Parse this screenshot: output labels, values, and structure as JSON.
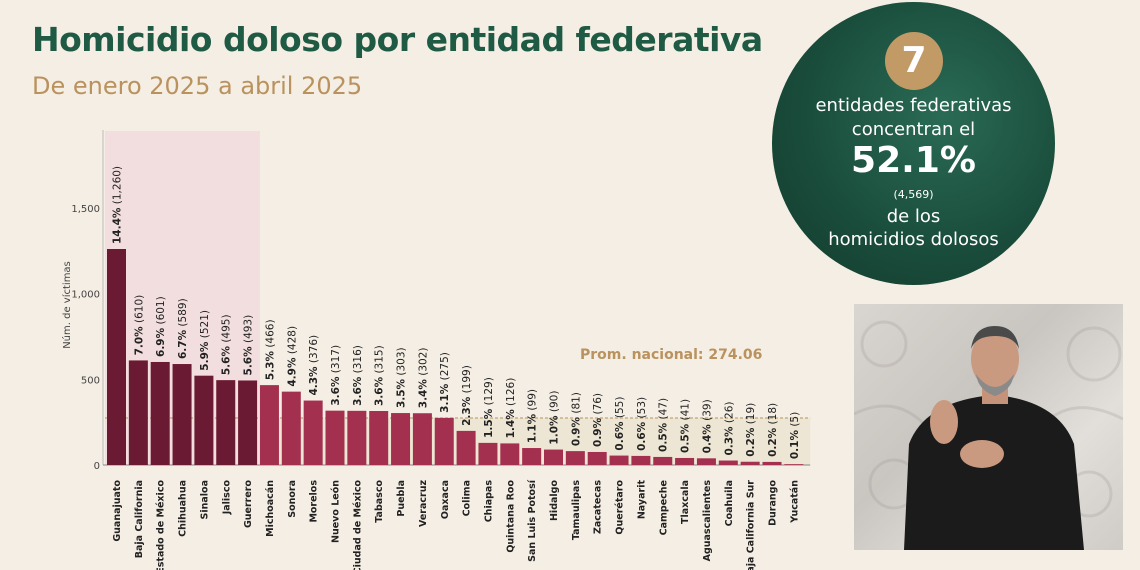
{
  "header": {
    "title": "Homicidio doloso por entidad federativa",
    "subtitle": "De enero 2025 a abril 2025"
  },
  "badge": {
    "number": "7",
    "line1": "entidades federativas",
    "line2": "concentran el",
    "percent": "52.1%",
    "count": "(4,569)",
    "line3": "de los",
    "line4": "homicidios dolosos"
  },
  "colors": {
    "top_bar": "#6b1a33",
    "other_bar": "#a4304f",
    "highlight": "#f2dede",
    "average_line": "#b9925e",
    "title": "#1f5a45",
    "badge_bg": "#1a4d3c"
  },
  "chart_data": {
    "type": "bar",
    "ylabel": "Núm. de víctimas",
    "ylim": [
      0,
      1750
    ],
    "yticks": [
      "0",
      "500",
      "1,000",
      "1,500"
    ],
    "average": 274.06,
    "average_label": "Prom. nacional: 274.06",
    "highlighted_count": 7,
    "categories": [
      "Guanajuato",
      "Baja California",
      "Estado de México",
      "Chihuahua",
      "Sinaloa",
      "Jalisco",
      "Guerrero",
      "Michoacán",
      "Sonora",
      "Morelos",
      "Nuevo León",
      "Ciudad de México",
      "Tabasco",
      "Puebla",
      "Veracruz",
      "Oaxaca",
      "Colima",
      "Chiapas",
      "Quintana Roo",
      "San Luis Potosí",
      "Hidalgo",
      "Tamaulipas",
      "Zacatecas",
      "Querétaro",
      "Nayarit",
      "Campeche",
      "Tlaxcala",
      "Aguascalientes",
      "Coahuila",
      "Baja California Sur",
      "Durango",
      "Yucatán"
    ],
    "values": [
      1260,
      610,
      601,
      589,
      521,
      495,
      493,
      466,
      428,
      376,
      317,
      316,
      315,
      303,
      302,
      275,
      199,
      129,
      126,
      99,
      90,
      81,
      76,
      55,
      53,
      47,
      41,
      39,
      26,
      19,
      18,
      5
    ],
    "percent_labels": [
      "14.4%",
      "7.0%",
      "6.9%",
      "6.7%",
      "5.9%",
      "5.6%",
      "5.6%",
      "5.3%",
      "4.9%",
      "4.3%",
      "3.6%",
      "3.6%",
      "3.6%",
      "3.5%",
      "3.4%",
      "3.1%",
      "2.3%",
      "1.5%",
      "1.4%",
      "1.1%",
      "1.0%",
      "0.9%",
      "0.9%",
      "0.6%",
      "0.6%",
      "0.5%",
      "0.5%",
      "0.4%",
      "0.3%",
      "0.2%",
      "0.2%",
      "0.1%"
    ],
    "count_labels": [
      "(1,260)",
      "(610)",
      "(601)",
      "(589)",
      "(521)",
      "(495)",
      "(493)",
      "(466)",
      "(428)",
      "(376)",
      "(317)",
      "(316)",
      "(315)",
      "(303)",
      "(302)",
      "(275)",
      "(199)",
      "(129)",
      "(126)",
      "(99)",
      "(90)",
      "(81)",
      "(76)",
      "(55)",
      "(53)",
      "(47)",
      "(41)",
      "(39)",
      "(26)",
      "(19)",
      "(18)",
      "(5)"
    ]
  }
}
